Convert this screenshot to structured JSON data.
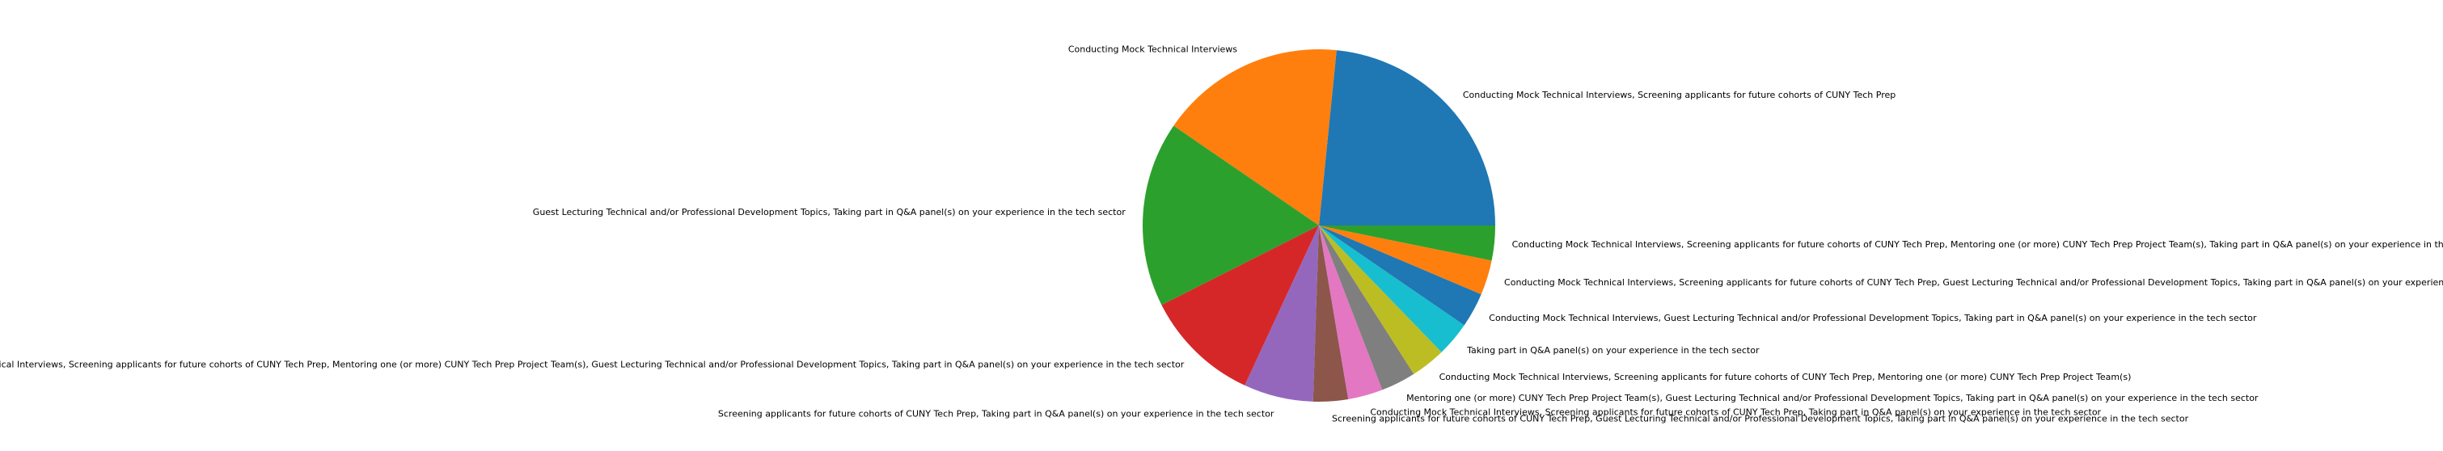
{
  "chart_data": {
    "type": "pie",
    "title": "",
    "start_angle_deg": 0,
    "direction": "counterclockwise",
    "legend": "none",
    "slices": [
      {
        "label": "Conducting Mock Technical Interviews, Screening applicants for future cohorts of CUNY Tech Prep",
        "value": 11,
        "color": "#1f77b4"
      },
      {
        "label": "Conducting Mock Technical Interviews",
        "value": 8,
        "color": "#ff7f0e"
      },
      {
        "label": "Guest Lecturing Technical and/or Professional Development Topics, Taking part in Q&A panel(s) on your experience in the tech sector",
        "value": 8,
        "color": "#2ca02c"
      },
      {
        "label": "Conducting Mock Technical Interviews, Screening applicants for future cohorts of CUNY Tech Prep, Mentoring one (or more) CUNY Tech Prep Project Team(s), Guest Lecturing Technical and/or Professional Development Topics, Taking part in Q&A panel(s) on your experience in the tech sector",
        "value": 5,
        "color": "#d62728"
      },
      {
        "label": "Screening applicants for future cohorts of CUNY Tech Prep, Taking part in Q&A panel(s) on your experience in the tech sector",
        "value": 3,
        "color": "#9467bd"
      },
      {
        "label": "Screening applicants for future cohorts of CUNY Tech Prep, Guest Lecturing Technical and/or Professional Development Topics, Taking part in Q&A panel(s) on your experience in the tech sector",
        "value": 1.5,
        "color": "#8c564b"
      },
      {
        "label": "Conducting Mock Technical Interviews, Screening applicants for future cohorts of CUNY Tech Prep, Taking part in Q&A panel(s) on your experience in the tech sector",
        "value": 1.5,
        "color": "#e377c2"
      },
      {
        "label": "Mentoring one (or more) CUNY Tech Prep Project Team(s), Guest Lecturing Technical and/or Professional Development Topics, Taking part in Q&A panel(s) on your experience in the tech sector",
        "value": 1.5,
        "color": "#7f7f7f"
      },
      {
        "label": "Conducting Mock Technical Interviews, Screening applicants for future cohorts of CUNY Tech Prep, Mentoring one (or more) CUNY Tech Prep Project Team(s)",
        "value": 1.5,
        "color": "#bcbd22"
      },
      {
        "label": "Taking part in Q&A panel(s) on your experience in the tech sector",
        "value": 1.5,
        "color": "#17becf"
      },
      {
        "label": "Conducting Mock Technical Interviews, Guest Lecturing Technical and/or Professional Development Topics, Taking part in Q&A panel(s) on your experience in the tech sector",
        "value": 1.5,
        "color": "#1f77b4"
      },
      {
        "label": "Conducting Mock Technical Interviews, Screening applicants for future cohorts of CUNY Tech Prep, Guest Lecturing Technical and/or Professional Development Topics, Taking part in Q&A panel(s) on your experience in the tech sector",
        "value": 1.5,
        "color": "#ff7f0e"
      },
      {
        "label": "Conducting Mock Technical Interviews, Screening applicants for future cohorts of CUNY Tech Prep, Mentoring one (or more) CUNY Tech Prep Project Team(s), Taking part in Q&A panel(s) on your experience in the tech sector",
        "value": 1.5,
        "color": "#2ca02c"
      }
    ]
  }
}
